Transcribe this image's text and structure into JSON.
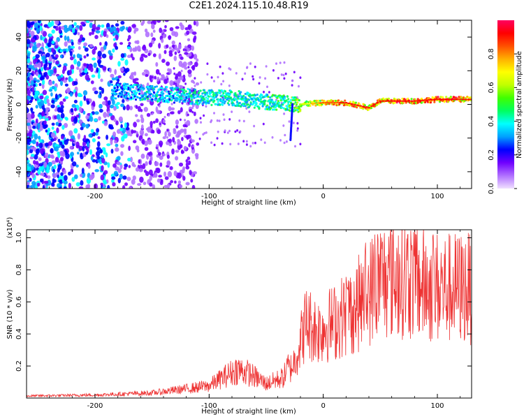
{
  "title": "C2E1.2024.115.10.48.R19",
  "chart_data": [
    {
      "type": "heatmap",
      "xlabel": "Height of straight line (km)",
      "ylabel": "Frequency (Hz)",
      "xlim": [
        -260,
        130
      ],
      "ylim": [
        -50,
        50
      ],
      "x_ticks": [
        -200,
        -100,
        0,
        100
      ],
      "y_ticks": [
        -40,
        -20,
        0,
        20,
        40
      ],
      "colorbar": {
        "label": "Normalized spectral amplitude",
        "range": [
          0,
          1
        ],
        "ticks": [
          "0.0",
          "0.2",
          "0.4",
          "0.6",
          "0.8"
        ],
        "colors": [
          "#f0e0ff",
          "#b070ff",
          "#7000ff",
          "#0000ff",
          "#00a0ff",
          "#00ffff",
          "#00ff60",
          "#40ff00",
          "#c0ff00",
          "#ffff00",
          "#ffb000",
          "#ff5000",
          "#ff0000",
          "#ff0060"
        ]
      },
      "ridge": [
        {
          "x": -180,
          "f": 8,
          "amp": 0.35
        },
        {
          "x": -160,
          "f": 7,
          "amp": 0.4
        },
        {
          "x": -140,
          "f": 6,
          "amp": 0.4
        },
        {
          "x": -120,
          "f": 5,
          "amp": 0.42
        },
        {
          "x": -100,
          "f": 4,
          "amp": 0.45
        },
        {
          "x": -80,
          "f": 4,
          "amp": 0.45
        },
        {
          "x": -60,
          "f": 2,
          "amp": 0.45
        },
        {
          "x": -40,
          "f": 1,
          "amp": 0.5
        },
        {
          "x": -20,
          "f": 0,
          "amp": 0.6
        },
        {
          "x": 0,
          "f": 1,
          "amp": 0.8
        },
        {
          "x": 20,
          "f": 1,
          "amp": 0.85
        },
        {
          "x": 40,
          "f": -2,
          "amp": 0.85
        },
        {
          "x": 50,
          "f": 2,
          "amp": 0.9
        },
        {
          "x": 80,
          "f": 2,
          "amp": 0.9
        },
        {
          "x": 100,
          "f": 3,
          "amp": 0.9
        },
        {
          "x": 130,
          "f": 3,
          "amp": 0.9
        }
      ]
    },
    {
      "type": "line",
      "xlabel": "Height of straight line (km)",
      "ylabel": "SNR (10 * v/v)",
      "multiplier": "(x10⁴)",
      "xlim": [
        -260,
        130
      ],
      "ylim": [
        0,
        1.05
      ],
      "x_ticks": [
        -200,
        -100,
        0,
        100
      ],
      "y_ticks": [
        0.2,
        0.4,
        0.6,
        0.8,
        1.0
      ],
      "color": "#ee3333",
      "envelope": [
        {
          "x": -260,
          "y": 0.01
        },
        {
          "x": -200,
          "y": 0.015
        },
        {
          "x": -150,
          "y": 0.025
        },
        {
          "x": -120,
          "y": 0.045
        },
        {
          "x": -100,
          "y": 0.06
        },
        {
          "x": -85,
          "y": 0.11
        },
        {
          "x": -75,
          "y": 0.14
        },
        {
          "x": -65,
          "y": 0.12
        },
        {
          "x": -50,
          "y": 0.07
        },
        {
          "x": -35,
          "y": 0.1
        },
        {
          "x": -25,
          "y": 0.22
        },
        {
          "x": -15,
          "y": 0.45
        },
        {
          "x": -5,
          "y": 0.4
        },
        {
          "x": 10,
          "y": 0.45
        },
        {
          "x": 30,
          "y": 0.55
        },
        {
          "x": 50,
          "y": 0.7
        },
        {
          "x": 70,
          "y": 0.72
        },
        {
          "x": 90,
          "y": 0.66
        },
        {
          "x": 110,
          "y": 0.65
        },
        {
          "x": 130,
          "y": 0.65
        }
      ]
    }
  ]
}
